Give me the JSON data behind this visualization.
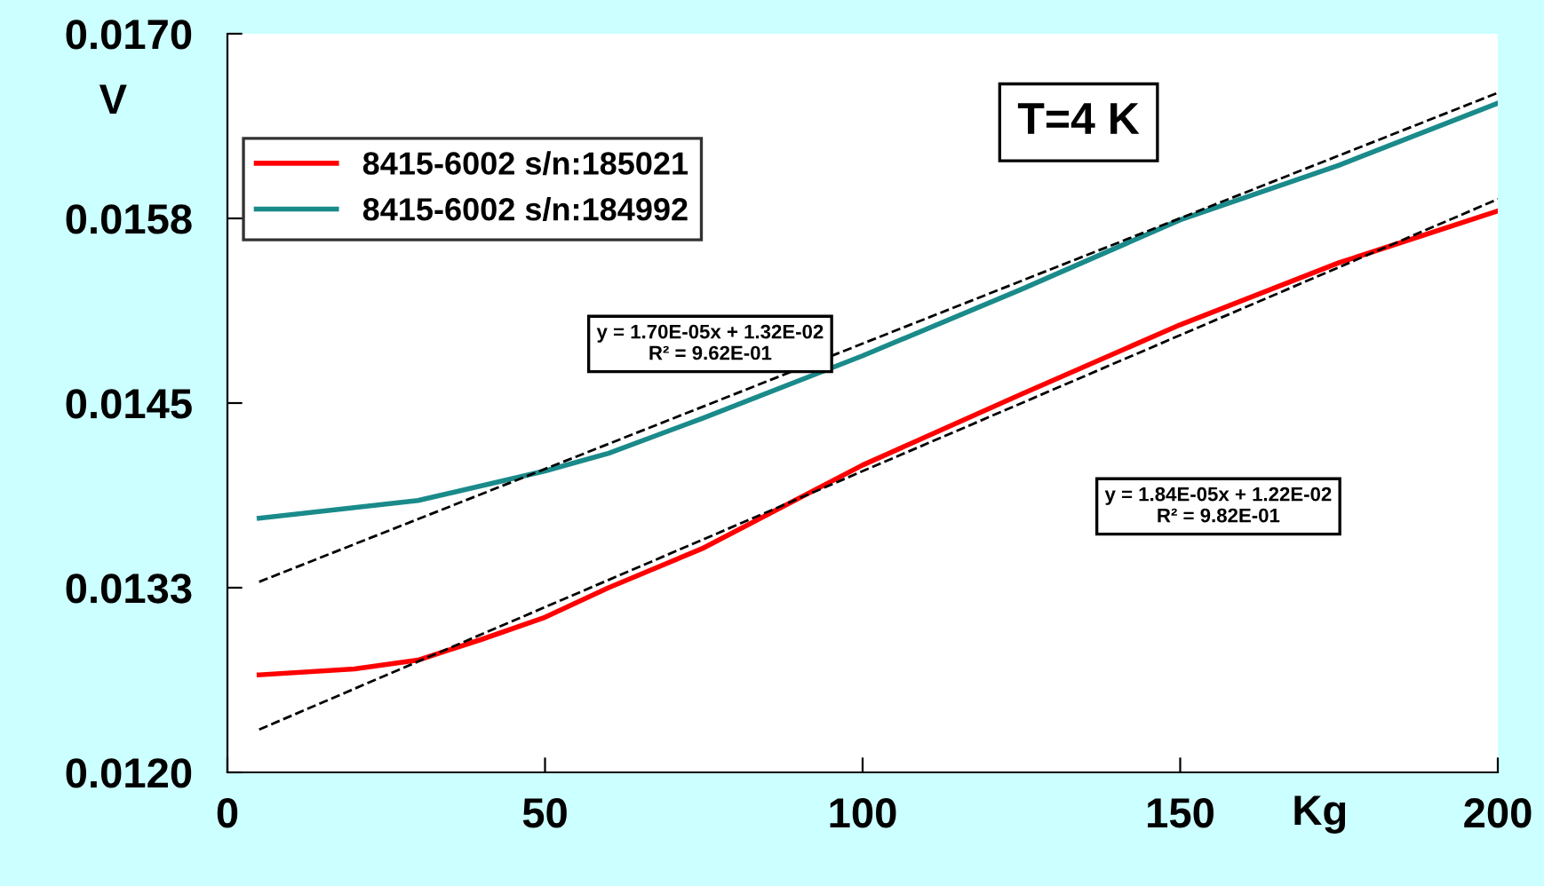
{
  "chart_data": {
    "type": "line",
    "xlabel": "Kg",
    "ylabel": "V",
    "xlim": [
      0,
      200
    ],
    "xticks": [
      0,
      50,
      100,
      150,
      200
    ],
    "ylim": [
      0.012,
      0.017
    ],
    "yticks": [
      {
        "value": 0.012,
        "label": "0.0120"
      },
      {
        "value": 0.01325,
        "label": "0.0133"
      },
      {
        "value": 0.0145,
        "label": "0.0145"
      },
      {
        "value": 0.01575,
        "label": "0.0158"
      },
      {
        "value": 0.017,
        "label": "0.0170"
      }
    ],
    "series": [
      {
        "name": "8415-6002 s/n:185021",
        "color": "#ff0000",
        "x": [
          5,
          20,
          30,
          40,
          50,
          60,
          75,
          100,
          125,
          150,
          175,
          200
        ],
        "values": [
          0.01266,
          0.0127,
          0.01276,
          0.0129,
          0.01305,
          0.01325,
          0.01352,
          0.01408,
          0.01456,
          0.01503,
          0.01545,
          0.0158
        ]
      },
      {
        "name": "8415-6002 s/n:184992",
        "color": "#1a8a8a",
        "x": [
          5,
          30,
          50,
          60,
          75,
          100,
          125,
          150,
          175,
          200
        ],
        "values": [
          0.01372,
          0.01384,
          0.01404,
          0.01416,
          0.0144,
          0.01482,
          0.01527,
          0.01574,
          0.01611,
          0.01653
        ]
      },
      {
        "type": "line",
        "color": "#000000",
        "line_style": "dashed",
        "x": [
          5,
          200
        ],
        "values": [
          0.01329,
          0.0166
        ]
      },
      {
        "type": "line",
        "color": "#000000",
        "line_style": "dashed",
        "x": [
          5,
          200
        ],
        "values": [
          0.01229,
          0.01588
        ]
      }
    ],
    "annotations": [
      "T=4 K",
      "y = 1.70E-05x + 1.32E-02\nR² = 9.62E-01",
      "y = 1.84E-05x + 1.22E-02\nR² = 9.82E-01"
    ],
    "legend": "top left",
    "grid": false,
    "marker": "none"
  }
}
